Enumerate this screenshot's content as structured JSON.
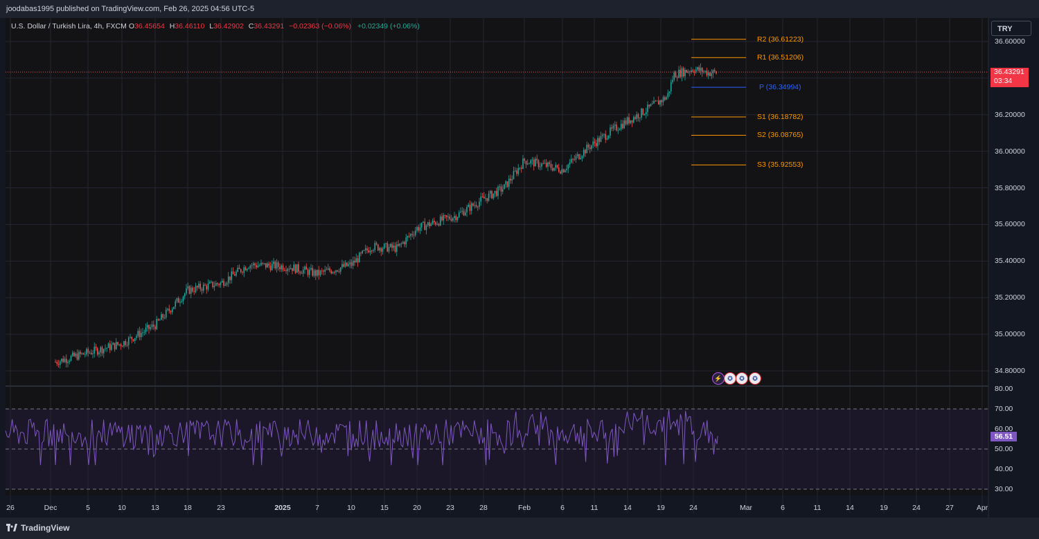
{
  "header": {
    "publisher": "joodabas1995 published on TradingView.com, Feb 26, 2025 04:56 UTC-5"
  },
  "legend": {
    "symbol": "U.S. Dollar / Turkish Lira, 4h, FXCM",
    "open_label": "O",
    "open": "36.45654",
    "high_label": "H",
    "high": "36.46110",
    "low_label": "L",
    "low": "36.42902",
    "close_label": "C",
    "close": "36.43291",
    "change": "−0.02363 (−0.06%)",
    "change2": "+0.02349 (+0.06%)"
  },
  "currency_button": "TRY",
  "last_price": {
    "value": "36.43291",
    "countdown": "03:34"
  },
  "rsi_last": "56.51",
  "footer": {
    "brand": "TradingView"
  },
  "events": [
    {
      "icon": "lightning-icon",
      "color": "#b056e8"
    },
    {
      "icon": "us-flag-icon",
      "color": "#e9e9ee"
    },
    {
      "icon": "us-flag-icon",
      "color": "#e9e9ee"
    },
    {
      "icon": "us-flag-icon",
      "color": "#e9e9ee"
    }
  ],
  "colors": {
    "up": "#26a69a",
    "down": "#ef5350",
    "pivot": "#2962ff",
    "resistance": "#ff9800",
    "rsi": "#7e57c2",
    "background": "#131722"
  },
  "chart_data": [
    {
      "type": "candlestick",
      "title": "U.S. Dollar / Turkish Lira, 4h, FXCM",
      "y_ticks": [
        "36.60000",
        "36.20000",
        "36.00000",
        "35.80000",
        "35.60000",
        "35.40000",
        "35.20000",
        "35.00000",
        "34.80000"
      ],
      "ylim": [
        34.72,
        36.72
      ],
      "x_ticks": [
        "26",
        "Dec",
        "5",
        "10",
        "13",
        "18",
        "23",
        "2025",
        "7",
        "10",
        "15",
        "20",
        "23",
        "28",
        "Feb",
        "6",
        "11",
        "14",
        "19",
        "24",
        "Mar",
        "6",
        "11",
        "14",
        "19",
        "24",
        "27",
        "Apr"
      ],
      "price_path": [
        {
          "x": "Nov 28",
          "y": 34.8
        },
        {
          "x": "Dec 4",
          "y": 34.88
        },
        {
          "x": "Dec 10",
          "y": 34.95
        },
        {
          "x": "Dec 13",
          "y": 35.05
        },
        {
          "x": "Dec 18",
          "y": 35.24
        },
        {
          "x": "Dec 23",
          "y": 35.28
        },
        {
          "x": "Dec 27",
          "y": 35.38
        },
        {
          "x": "Jan 2",
          "y": 35.37
        },
        {
          "x": "Jan 7",
          "y": 35.33
        },
        {
          "x": "Jan 10",
          "y": 35.38
        },
        {
          "x": "Jan 13",
          "y": 35.48
        },
        {
          "x": "Jan 17",
          "y": 35.47
        },
        {
          "x": "Jan 20",
          "y": 35.58
        },
        {
          "x": "Jan 24",
          "y": 35.65
        },
        {
          "x": "Jan 28",
          "y": 35.74
        },
        {
          "x": "Jan 31",
          "y": 35.8
        },
        {
          "x": "Feb 3",
          "y": 35.95
        },
        {
          "x": "Feb 6",
          "y": 35.9
        },
        {
          "x": "Feb 10",
          "y": 36.02
        },
        {
          "x": "Feb 13",
          "y": 36.13
        },
        {
          "x": "Feb 17",
          "y": 36.23
        },
        {
          "x": "Feb 20",
          "y": 36.3
        },
        {
          "x": "Feb 21",
          "y": 36.42
        },
        {
          "x": "Feb 24",
          "y": 36.45
        },
        {
          "x": "Feb 26",
          "y": 36.43
        }
      ],
      "pivots": [
        {
          "name": "R2",
          "value": 36.61223,
          "label": "R2 (36.61223)",
          "color": "#ff9800"
        },
        {
          "name": "R1",
          "value": 36.51206,
          "label": "R1 (36.51206)",
          "color": "#ff9800"
        },
        {
          "name": "P",
          "value": 36.34994,
          "label": "P (36.34994)",
          "color": "#2962ff"
        },
        {
          "name": "S1",
          "value": 36.18782,
          "label": "S1 (36.18782)",
          "color": "#ff9800"
        },
        {
          "name": "S2",
          "value": 36.08765,
          "label": "S2 (36.08765)",
          "color": "#ff9800"
        },
        {
          "name": "S3",
          "value": 35.92553,
          "label": "S3 (35.92553)",
          "color": "#ff9800"
        }
      ],
      "grid": true
    },
    {
      "type": "line",
      "series_name": "",
      "y_ticks": [
        "80.00",
        "70.00",
        "60.00",
        "50.00",
        "40.00",
        "30.00"
      ],
      "ylim": [
        30,
        80
      ],
      "bands": [
        70,
        50,
        30
      ],
      "last": 56.51
    }
  ]
}
